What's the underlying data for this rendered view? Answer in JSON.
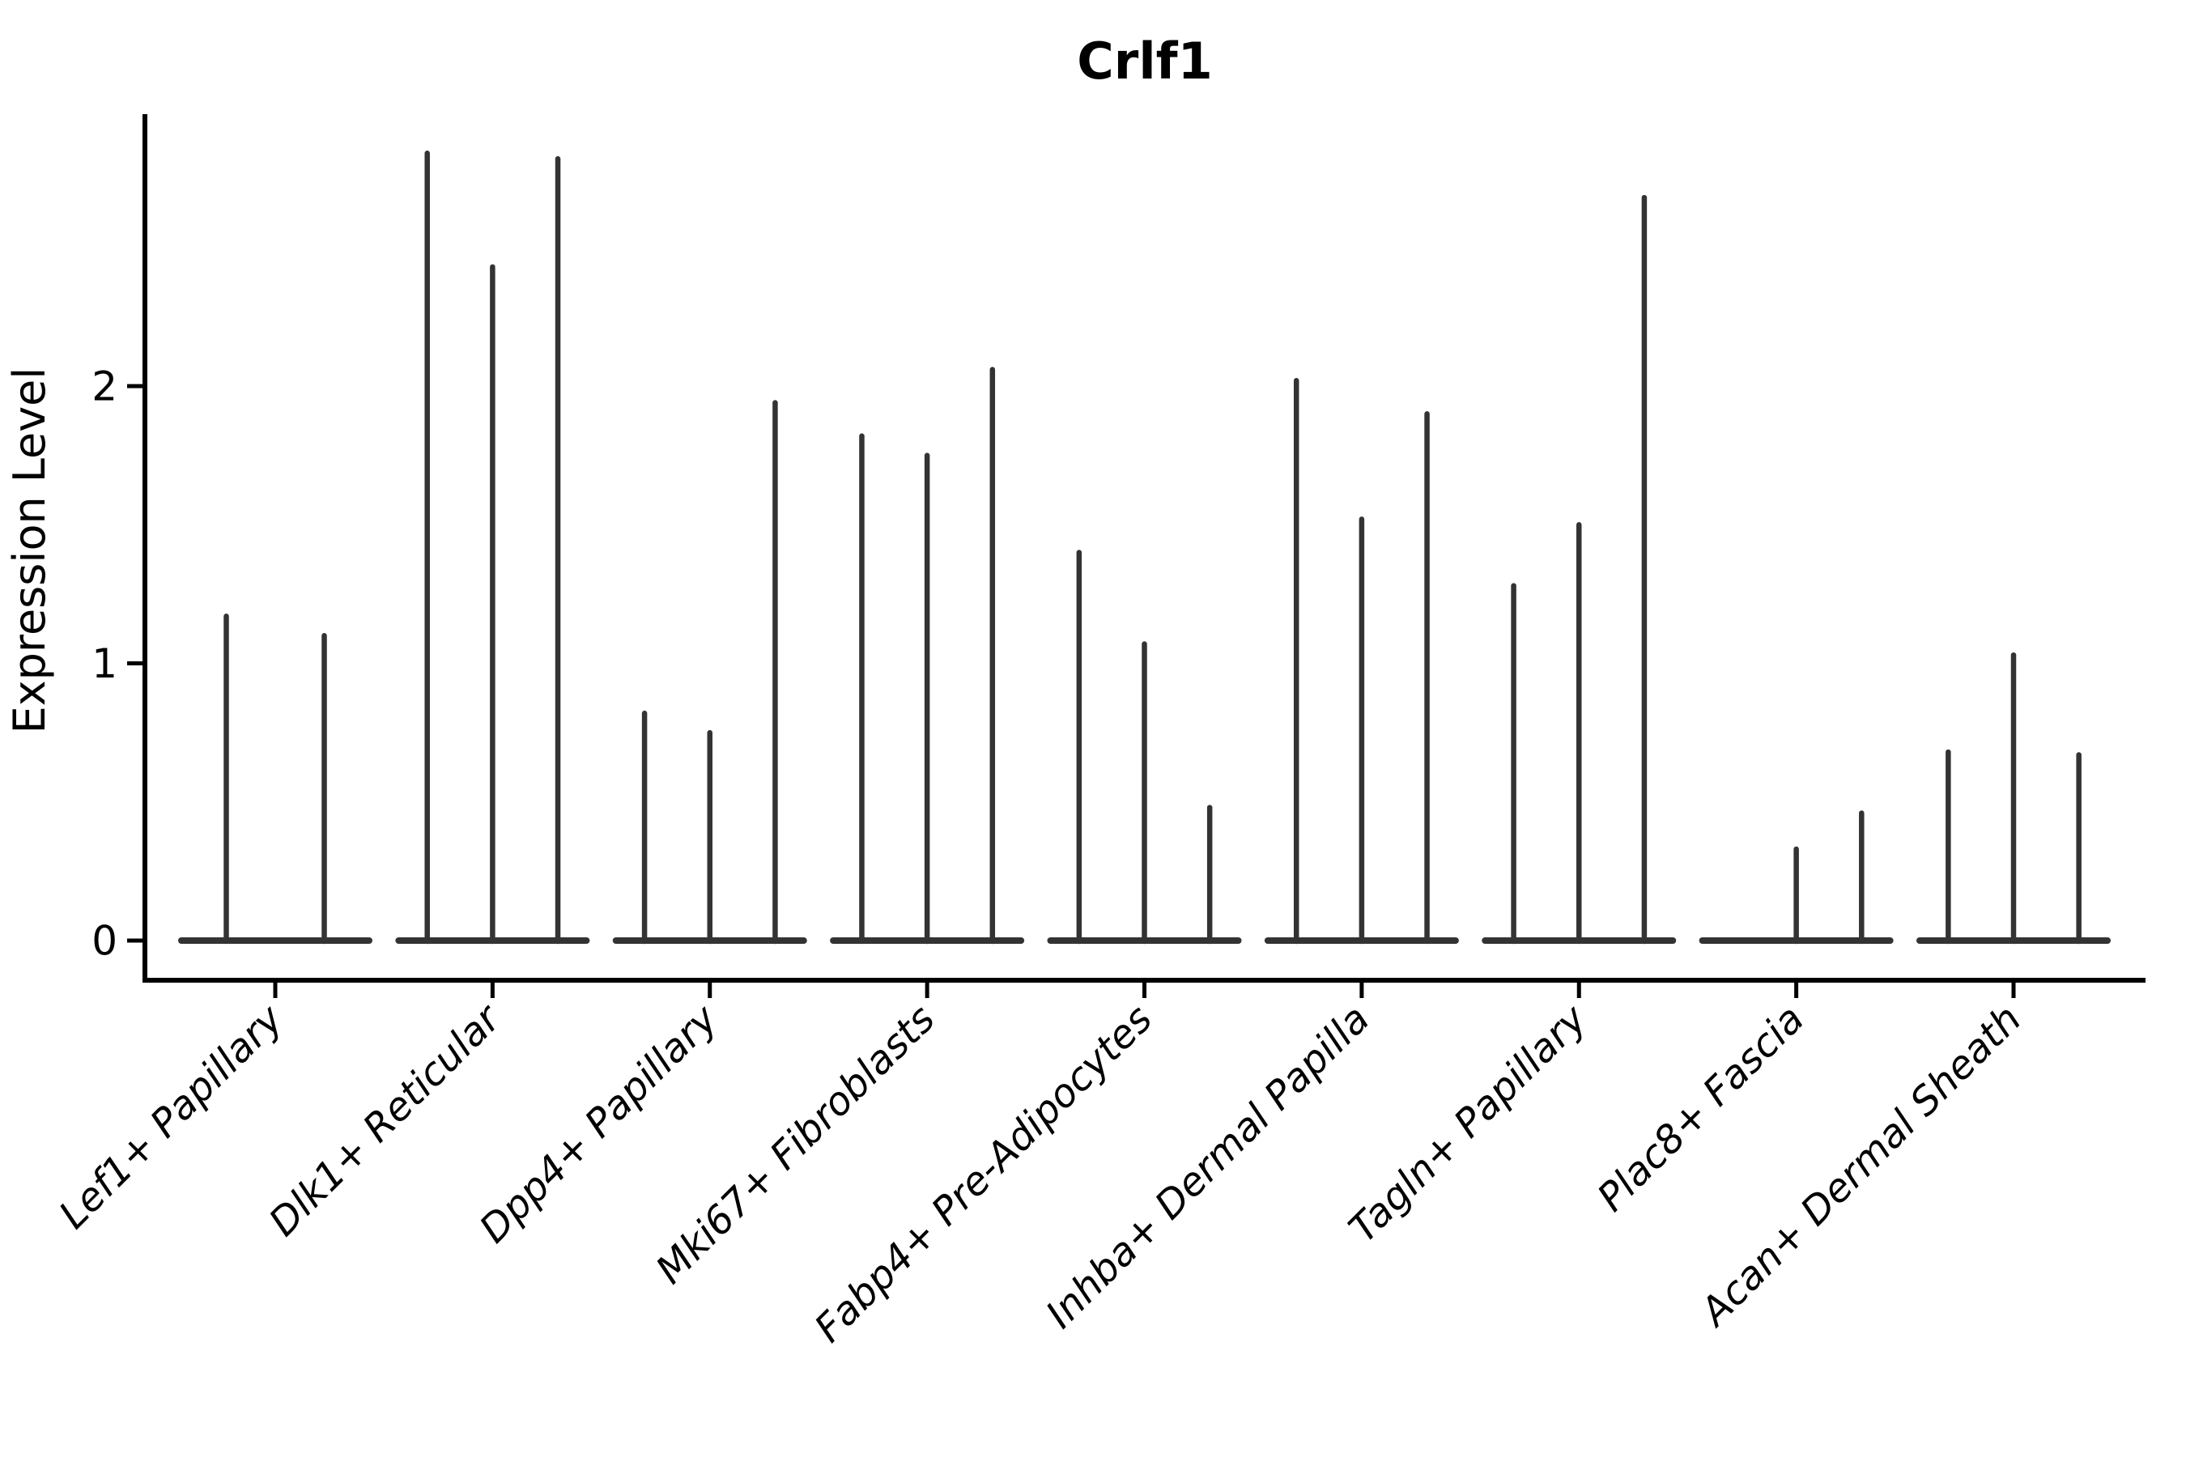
{
  "figure": {
    "title": "Crlf1",
    "ylabel": "Expression Level",
    "background_color": "#ffffff",
    "violin_color": "#333333",
    "axis_color": "#000000"
  },
  "chart_data": {
    "type": "violin",
    "title": "Crlf1",
    "xlabel": "",
    "ylabel": "Expression Level",
    "ylim": [
      -0.142,
      2.982
    ],
    "y_ticks": [
      0,
      1,
      2
    ],
    "grid": false,
    "legend": false,
    "x_tick_rotation": 45,
    "categories": [
      "Lef1+ Papillary",
      "Dlk1+ Reticular",
      "Dpp4+ Papillary",
      "Mki67+ Fibroblasts",
      "Fabp4+ Pre-Adipocytes",
      "Inhba+ Dermal Papilla",
      "Tagln+ Papillary",
      "Plac8+ Fascia",
      "Acan+ Dermal Sheath"
    ],
    "groups": [
      {
        "category": "Lef1+ Papillary",
        "violin_maxima": [
          1.17,
          1.1
        ]
      },
      {
        "category": "Dlk1+ Reticular",
        "violin_maxima": [
          2.84,
          2.43,
          2.82
        ]
      },
      {
        "category": "Dpp4+ Papillary",
        "violin_maxima": [
          0.82,
          0.75,
          1.94
        ]
      },
      {
        "category": "Mki67+ Fibroblasts",
        "violin_maxima": [
          1.82,
          1.75,
          2.06
        ]
      },
      {
        "category": "Fabp4+ Pre-Adipocytes",
        "violin_maxima": [
          1.4,
          1.07,
          0.48
        ]
      },
      {
        "category": "Inhba+ Dermal Papilla",
        "violin_maxima": [
          2.02,
          1.52,
          1.9
        ]
      },
      {
        "category": "Tagln+ Papillary",
        "violin_maxima": [
          1.28,
          1.5,
          2.68
        ]
      },
      {
        "category": "Plac8+ Fascia",
        "violin_maxima": [
          0.0,
          0.33,
          0.46
        ]
      },
      {
        "category": "Acan+ Dermal Sheath",
        "violin_maxima": [
          0.68,
          1.03,
          0.67
        ]
      }
    ]
  }
}
